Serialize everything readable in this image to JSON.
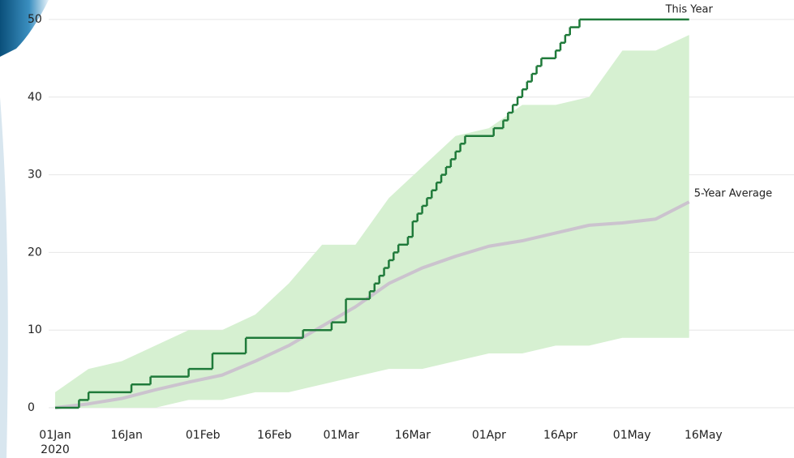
{
  "chart_data": {
    "type": "cumulative-range",
    "xlim": [
      "2020-01-01",
      "2020-06-04"
    ],
    "xticks": [
      {
        "value": "2020-01-01",
        "label": "01Jan"
      },
      {
        "value": "2020-01-16",
        "label": "16Jan"
      },
      {
        "value": "2020-02-01",
        "label": "01Feb"
      },
      {
        "value": "2020-02-16",
        "label": "16Feb"
      },
      {
        "value": "2020-03-01",
        "label": "01Mar"
      },
      {
        "value": "2020-03-16",
        "label": "16Mar"
      },
      {
        "value": "2020-04-01",
        "label": "01Apr"
      },
      {
        "value": "2020-04-16",
        "label": "16Apr"
      },
      {
        "value": "2020-05-01",
        "label": "01May"
      },
      {
        "value": "2020-05-16",
        "label": "16May"
      }
    ],
    "year_label": "2020",
    "ylim": [
      0,
      50
    ],
    "yticks": [
      0,
      10,
      20,
      30,
      40,
      50
    ],
    "grid": true,
    "band": {
      "color": "#d6f0d1",
      "x": [
        "2020-01-01",
        "2020-01-08",
        "2020-01-15",
        "2020-01-22",
        "2020-01-29",
        "2020-02-05",
        "2020-02-12",
        "2020-02-19",
        "2020-02-26",
        "2020-03-04",
        "2020-03-11",
        "2020-03-18",
        "2020-03-25",
        "2020-04-01",
        "2020-04-08",
        "2020-04-15",
        "2020-04-22",
        "2020-04-29",
        "2020-05-06",
        "2020-05-13"
      ],
      "lower": [
        0,
        0,
        0,
        0,
        1,
        1,
        2,
        2,
        3,
        4,
        5,
        5,
        6,
        7,
        7,
        8,
        8,
        9,
        9,
        9
      ],
      "upper": [
        2,
        5,
        6,
        8,
        10,
        10,
        12,
        16,
        21,
        21,
        27,
        31,
        35,
        36,
        39,
        39,
        40,
        46,
        46,
        48
      ]
    },
    "series": [
      {
        "name": "This Year",
        "color": "#1f7a3a",
        "step": true,
        "x": [
          "2020-01-01",
          "2020-01-06",
          "2020-01-08",
          "2020-01-17",
          "2020-01-21",
          "2020-01-29",
          "2020-02-03",
          "2020-02-10",
          "2020-02-22",
          "2020-02-28",
          "2020-03-02",
          "2020-03-06",
          "2020-03-07",
          "2020-03-08",
          "2020-03-09",
          "2020-03-10",
          "2020-03-11",
          "2020-03-12",
          "2020-03-13",
          "2020-03-15",
          "2020-03-16",
          "2020-03-17",
          "2020-03-18",
          "2020-03-19",
          "2020-03-20",
          "2020-03-21",
          "2020-03-22",
          "2020-03-23",
          "2020-03-24",
          "2020-03-25",
          "2020-03-26",
          "2020-03-27",
          "2020-04-02",
          "2020-04-04",
          "2020-04-05",
          "2020-04-06",
          "2020-04-07",
          "2020-04-08",
          "2020-04-09",
          "2020-04-10",
          "2020-04-11",
          "2020-04-12",
          "2020-04-15",
          "2020-04-16",
          "2020-04-17",
          "2020-04-18",
          "2020-04-20",
          "2020-05-13"
        ],
        "values": [
          0,
          1,
          2,
          3,
          4,
          5,
          7,
          9,
          10,
          11,
          14,
          14,
          15,
          16,
          17,
          18,
          19,
          20,
          21,
          22,
          24,
          25,
          26,
          27,
          28,
          29,
          30,
          31,
          32,
          33,
          34,
          35,
          36,
          37,
          38,
          39,
          40,
          41,
          42,
          43,
          44,
          45,
          46,
          47,
          48,
          49,
          50,
          50
        ]
      },
      {
        "name": "5-Year Average",
        "color": "#cbc3ce",
        "step": false,
        "x": [
          "2020-01-01",
          "2020-01-08",
          "2020-01-15",
          "2020-01-22",
          "2020-01-29",
          "2020-02-05",
          "2020-02-12",
          "2020-02-19",
          "2020-02-26",
          "2020-03-04",
          "2020-03-11",
          "2020-03-18",
          "2020-03-25",
          "2020-04-01",
          "2020-04-08",
          "2020-04-15",
          "2020-04-22",
          "2020-04-29",
          "2020-05-06",
          "2020-05-13"
        ],
        "values": [
          0,
          0.5,
          1.2,
          2.3,
          3.3,
          4.2,
          6,
          8,
          10.5,
          13,
          16,
          18,
          19.5,
          20.8,
          21.5,
          22.5,
          23.5,
          23.8,
          24.3,
          26.5
        ]
      }
    ]
  }
}
